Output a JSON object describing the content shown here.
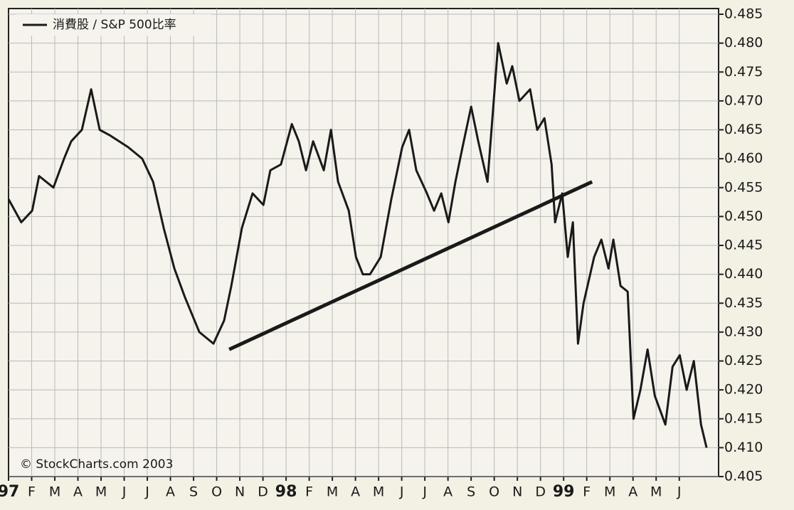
{
  "chart_data": {
    "type": "line",
    "legend": "消費股 / S&P 500比率",
    "annotation": "© StockCharts.com 2003",
    "x": [
      0,
      0.55,
      1.02,
      1.32,
      1.94,
      2.4,
      2.71,
      3.17,
      3.57,
      3.94,
      4.4,
      5.17,
      5.78,
      6.25,
      6.71,
      7.17,
      7.63,
      8.25,
      8.86,
      9.32,
      9.63,
      10.09,
      10.55,
      11.02,
      11.32,
      11.78,
      12.25,
      12.55,
      12.86,
      13.17,
      13.63,
      13.94,
      14.25,
      14.71,
      15.02,
      15.32,
      15.63,
      16.09,
      16.55,
      17.02,
      17.32,
      17.63,
      18.09,
      18.4,
      18.71,
      19.02,
      19.32,
      19.63,
      20.0,
      20.31,
      20.71,
      21.17,
      21.54,
      21.78,
      22.09,
      22.55,
      22.86,
      23.17,
      23.48,
      23.63,
      23.94,
      24.18,
      24.4,
      24.62,
      24.86,
      25.32,
      25.63,
      25.94,
      26.15,
      26.46,
      26.77,
      27.02,
      27.32,
      27.63,
      27.94,
      28.4,
      28.71,
      29.02,
      29.32,
      29.63,
      29.94,
      30.18
    ],
    "series": [
      {
        "color": "#1a1a1a",
        "values": [
          0.453,
          0.449,
          0.451,
          0.457,
          0.455,
          0.46,
          0.463,
          0.465,
          0.472,
          0.465,
          0.464,
          0.462,
          0.46,
          0.456,
          0.448,
          0.441,
          0.436,
          0.43,
          0.428,
          0.432,
          0.438,
          0.448,
          0.454,
          0.452,
          0.458,
          0.459,
          0.466,
          0.463,
          0.458,
          0.463,
          0.458,
          0.465,
          0.456,
          0.451,
          0.443,
          0.44,
          0.44,
          0.443,
          0.453,
          0.462,
          0.465,
          0.458,
          0.454,
          0.451,
          0.454,
          0.449,
          0.456,
          0.462,
          0.469,
          0.463,
          0.456,
          0.48,
          0.473,
          0.476,
          0.47,
          0.472,
          0.465,
          0.467,
          0.459,
          0.449,
          0.454,
          0.443,
          0.449,
          0.428,
          0.435,
          0.443,
          0.446,
          0.441,
          0.446,
          0.438,
          0.437,
          0.415,
          0.42,
          0.427,
          0.419,
          0.414,
          0.424,
          0.426,
          0.42,
          0.425,
          0.414,
          0.41
        ]
      }
    ],
    "trendline": {
      "x": [
        9.54,
        25.23
      ],
      "values": [
        0.427,
        0.456
      ]
    },
    "xlim": [
      0,
      30.7
    ],
    "xticks": [
      {
        "value": 0,
        "label": "97"
      },
      {
        "value": 1,
        "label": "F"
      },
      {
        "value": 2,
        "label": "M"
      },
      {
        "value": 3,
        "label": "A"
      },
      {
        "value": 4,
        "label": "M"
      },
      {
        "value": 5,
        "label": "J"
      },
      {
        "value": 6,
        "label": "J"
      },
      {
        "value": 7,
        "label": "A"
      },
      {
        "value": 8,
        "label": "S"
      },
      {
        "value": 9,
        "label": "O"
      },
      {
        "value": 10,
        "label": "N"
      },
      {
        "value": 11,
        "label": "D"
      },
      {
        "value": 12,
        "label": "98"
      },
      {
        "value": 13,
        "label": "F"
      },
      {
        "value": 14,
        "label": "M"
      },
      {
        "value": 15,
        "label": "A"
      },
      {
        "value": 16,
        "label": "M"
      },
      {
        "value": 17,
        "label": "J"
      },
      {
        "value": 18,
        "label": "J"
      },
      {
        "value": 19,
        "label": "A"
      },
      {
        "value": 20,
        "label": "S"
      },
      {
        "value": 21,
        "label": "O"
      },
      {
        "value": 22,
        "label": "N"
      },
      {
        "value": 23,
        "label": "D"
      },
      {
        "value": 24,
        "label": "99"
      },
      {
        "value": 25,
        "label": "F"
      },
      {
        "value": 26,
        "label": "M"
      },
      {
        "value": 27,
        "label": "A"
      },
      {
        "value": 28,
        "label": "M"
      },
      {
        "value": 29,
        "label": "J"
      }
    ],
    "ylim": [
      0.405,
      0.485
    ],
    "yticks": [
      0.405,
      {
        "value": 0.41,
        "label": "0.410"
      },
      0.415,
      {
        "value": 0.42,
        "label": "0.420"
      },
      0.425,
      {
        "value": 0.43,
        "label": "0.430"
      },
      0.435,
      {
        "value": 0.44,
        "label": "0.440"
      },
      0.445,
      {
        "value": 0.45,
        "label": "0.450"
      },
      0.455,
      {
        "value": 0.46,
        "label": "0.460"
      },
      0.465,
      {
        "value": 0.47,
        "label": "0.470"
      },
      0.475,
      {
        "value": 0.48,
        "label": "0.480"
      },
      0.485
    ],
    "grid": true
  }
}
